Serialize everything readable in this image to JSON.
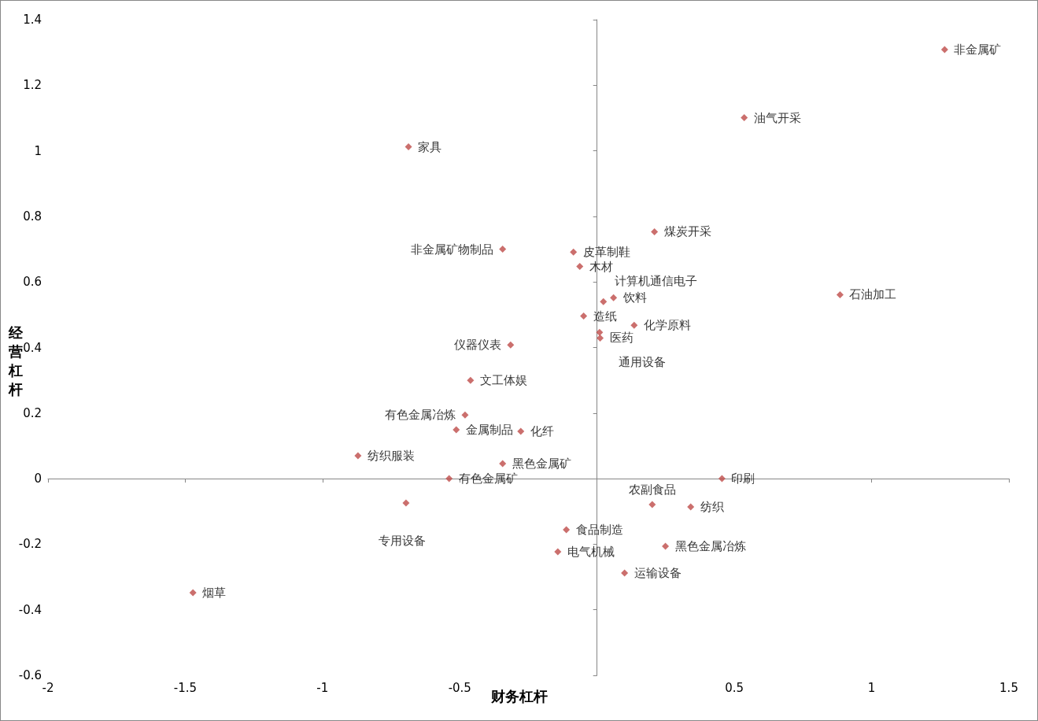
{
  "chart_data": {
    "type": "scatter",
    "xlabel": "财务杠杆",
    "ylabel": "经营杠杆",
    "x": [
      1.266,
      0.536,
      -0.687,
      0.209,
      -0.344,
      -0.086,
      -0.063,
      0.885,
      0.06,
      0.023,
      -0.049,
      0.135,
      0.009,
      0.011,
      -0.315,
      -0.461,
      -0.481,
      -0.513,
      -0.278,
      -0.871,
      -0.344,
      -0.539,
      0.455,
      0.201,
      -0.696,
      0.341,
      -0.112,
      0.249,
      -0.143,
      0.1,
      -1.472
    ],
    "series": [
      {
        "color": "#be4b48",
        "values": [
          1.309,
          1.101,
          1.012,
          0.753,
          0.7,
          0.691,
          0.647,
          0.561,
          0.552,
          0.54,
          0.496,
          0.468,
          0.446,
          0.429,
          0.408,
          0.3,
          0.194,
          0.149,
          0.144,
          0.07,
          0.046,
          0,
          0,
          -0.079,
          -0.074,
          -0.086,
          -0.156,
          -0.206,
          -0.223,
          -0.288,
          -0.348
        ]
      }
    ],
    "annotations": [
      {
        "text": "非金属矿",
        "x": 1.266,
        "y": 1.309
      },
      {
        "text": "油气开采",
        "x": 0.536,
        "y": 1.101
      },
      {
        "text": "家具",
        "x": -0.687,
        "y": 1.012
      },
      {
        "text": "煤炭开采",
        "x": 0.209,
        "y": 0.753
      },
      {
        "text": "非金属矿物制品",
        "x": -0.344,
        "y": 0.7
      },
      {
        "text": "皮革制鞋",
        "x": -0.086,
        "y": 0.691
      },
      {
        "text": "木材",
        "x": -0.063,
        "y": 0.647
      },
      {
        "text": "石油加工",
        "x": 0.885,
        "y": 0.561
      },
      {
        "text": "饮料",
        "x": 0.06,
        "y": 0.552
      },
      {
        "text": "计算机通信电子",
        "x": 0.023,
        "y": 0.54
      },
      {
        "text": "造纸",
        "x": -0.049,
        "y": 0.496
      },
      {
        "text": "化学原料",
        "x": 0.135,
        "y": 0.468
      },
      {
        "text": "通用设备",
        "x": 0.009,
        "y": 0.446
      },
      {
        "text": "医药",
        "x": 0.011,
        "y": 0.429
      },
      {
        "text": "仪器仪表",
        "x": -0.315,
        "y": 0.408
      },
      {
        "text": "文工体娱",
        "x": -0.461,
        "y": 0.3
      },
      {
        "text": "有色金属冶炼",
        "x": -0.481,
        "y": 0.194
      },
      {
        "text": "金属制品",
        "x": -0.513,
        "y": 0.149
      },
      {
        "text": "化纤",
        "x": -0.278,
        "y": 0.144
      },
      {
        "text": "纺织服装",
        "x": -0.871,
        "y": 0.07
      },
      {
        "text": "黑色金属矿",
        "x": -0.344,
        "y": 0.046
      },
      {
        "text": "有色金属矿",
        "x": -0.539,
        "y": 0
      },
      {
        "text": "印刷",
        "x": 0.455,
        "y": 0
      },
      {
        "text": "农副食品",
        "x": 0.201,
        "y": -0.079
      },
      {
        "text": "专用设备",
        "x": -0.696,
        "y": -0.074
      },
      {
        "text": "纺织",
        "x": 0.341,
        "y": -0.086
      },
      {
        "text": "食品制造",
        "x": -0.112,
        "y": -0.156
      },
      {
        "text": "黑色金属冶炼",
        "x": 0.249,
        "y": -0.206
      },
      {
        "text": "电气机械",
        "x": -0.143,
        "y": -0.223
      },
      {
        "text": "运输设备",
        "x": 0.1,
        "y": -0.288
      },
      {
        "text": "烟草",
        "x": -1.472,
        "y": -0.348
      }
    ],
    "xlim": [
      -2,
      1.5
    ],
    "xticks": [
      -2,
      -1.5,
      -1,
      -0.5,
      {
        "value": 0,
        "label": null
      },
      0.5,
      1,
      1.5
    ],
    "ylim": [
      -0.6,
      1.4
    ],
    "yticks": [
      -0.6,
      -0.4,
      -0.2,
      0,
      0.2,
      0.4,
      0.6,
      0.8,
      1,
      1.2,
      1.4
    ],
    "marker": "diamond"
  }
}
